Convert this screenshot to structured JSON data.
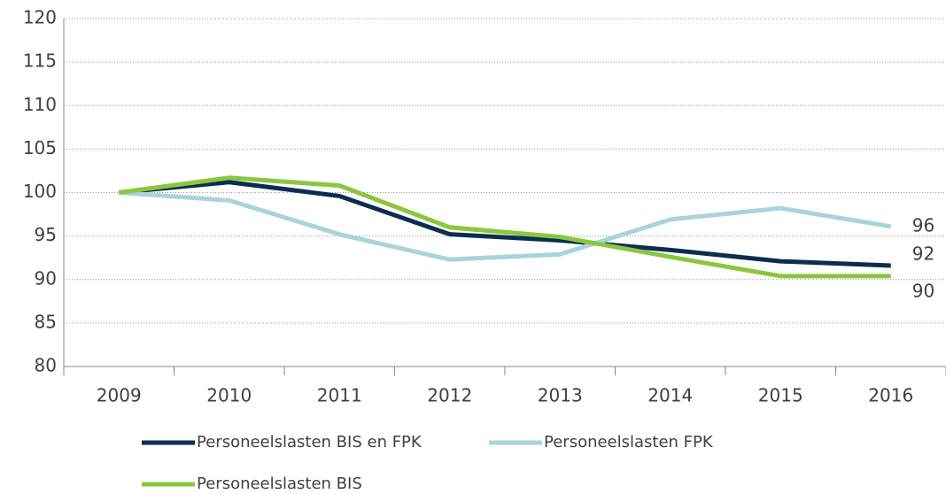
{
  "chart_data": {
    "type": "line",
    "categories": [
      "2009",
      "2010",
      "2011",
      "2012",
      "2013",
      "2014",
      "2015",
      "2016"
    ],
    "series": [
      {
        "name": "Personeelslasten BIS en FPK",
        "color": "#0b2d4f",
        "values": [
          100,
          101.2,
          99.6,
          95.2,
          94.5,
          93.4,
          92.1,
          91.6
        ],
        "value_labels": [
          null,
          null,
          null,
          null,
          null,
          null,
          null,
          "92"
        ]
      },
      {
        "name": "Personeelslasten FPK",
        "color": "#a9d4d9",
        "values": [
          100,
          99.1,
          95.2,
          92.3,
          92.9,
          96.9,
          98.2,
          96.1
        ],
        "value_labels": [
          null,
          null,
          null,
          null,
          null,
          null,
          null,
          "96"
        ]
      },
      {
        "name": "Personeelslasten BIS",
        "color": "#8cc63f",
        "values": [
          100,
          101.7,
          100.8,
          96.0,
          94.9,
          92.6,
          90.4,
          90.4
        ],
        "value_labels": [
          null,
          null,
          null,
          null,
          null,
          null,
          null,
          "90"
        ]
      }
    ],
    "ylim": [
      80,
      120
    ],
    "yticks": [
      80,
      85,
      90,
      95,
      100,
      105,
      110,
      115,
      120
    ],
    "grid": true
  }
}
